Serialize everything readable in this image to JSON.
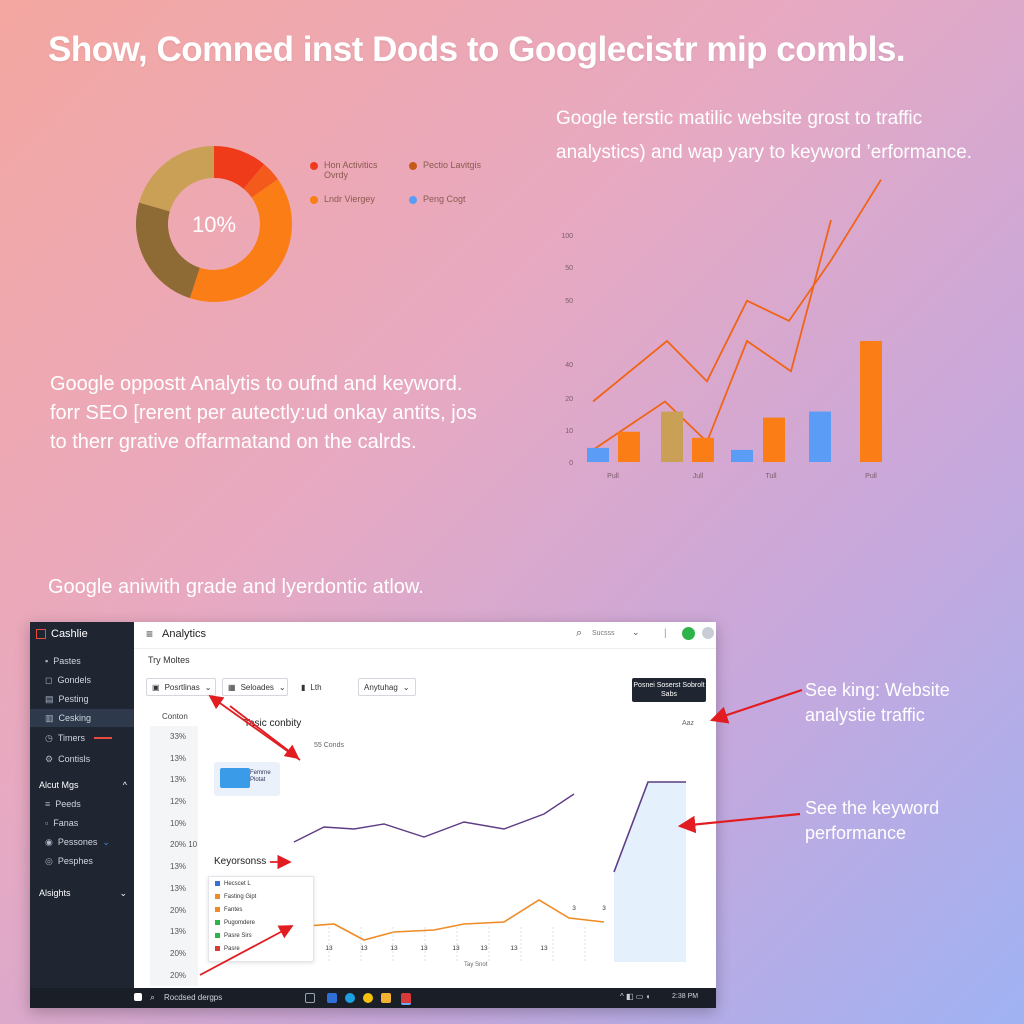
{
  "headline": "Show, Comned inst Dods to Googlecistr mip combls.",
  "right_subtitle": "Google terstic matilic website grost to traffic analystics) and wap yary to keyword ’erformance.",
  "left_paragraph": "Google oppostt Analytis to oufnd and keyword. forr SEO [rerent per autectly:ud onkay antits, jos to therr grative offarmatand on the calrds.",
  "screenshot_caption": "Google aniwith grade and lyerdontic atlow.",
  "callouts": {
    "callout_1": "See king: Website analystie traffic",
    "callout_2": "See the keyword performance"
  },
  "donut": {
    "center_label": "10%",
    "legend": [
      "Hon Activitics Ovrdy",
      "Pectio Lavitgis",
      "Lndr Viergey",
      "Peng Cogt"
    ]
  },
  "colors": {
    "red": "#f03b1a",
    "orange": "#fb7d15",
    "tan": "#c9a056",
    "olive": "#8e6a35",
    "blue": "#5b9cf6",
    "line_orange": "#f06418",
    "navy": "#1f2632",
    "annotation_red": "#e11d22",
    "line_purple": "#5d3d86"
  },
  "chart_data": {
    "type": "bar",
    "y_tick_labels": [
      "0",
      "10",
      "20",
      "40",
      "50",
      "50",
      "100"
    ],
    "x_tick_labels": [
      "Pull",
      "Jull",
      "Tull",
      "Pull"
    ],
    "lines": [
      {
        "points": [
          30,
          60,
          40,
          80,
          70,
          100,
          140
        ]
      },
      {
        "points": [
          6,
          30,
          10,
          60,
          45,
          120
        ]
      }
    ],
    "bars": [
      {
        "value": 7,
        "color": "blue"
      },
      {
        "value": 15,
        "color": "orange"
      },
      {
        "value": 25,
        "color": "tan"
      },
      {
        "value": 12,
        "color": "orange"
      },
      {
        "value": 6,
        "color": "blue"
      },
      {
        "value": 22,
        "color": "orange"
      },
      {
        "value": 25,
        "color": "blue"
      },
      {
        "value": 60,
        "color": "orange"
      }
    ]
  },
  "app": {
    "brand": "Cashlie",
    "title": "Analytics",
    "search_text": "Sucsss",
    "sidebar_items": [
      "Pastes",
      "Gondels",
      "Pesting",
      "Cesking",
      "Timers",
      "Contisls"
    ],
    "sidebar_section": "Alcut Mgs",
    "sidebar_items_2": [
      "Peeds",
      "Fanas",
      "Pessones",
      "Pesphes"
    ],
    "sidebar_footer": "Alsights",
    "breadcrumb": "Try Moltes",
    "filters": [
      "Posrtlinas",
      "Seloades",
      "Lth",
      "Anytuhag"
    ],
    "primary_button": "Posnei Soserst Sobrolt Sabs",
    "table_header": "Conton",
    "table_values": [
      "33%",
      "13%",
      "13%",
      "12%",
      "10%",
      "20% 10",
      "13%",
      "13%",
      "20%",
      "13%",
      "20%",
      "20%"
    ],
    "section_title": "Tasic conbity",
    "section_sub": "55 Conds",
    "card_label": "Femrne Plotat",
    "keyword_label": "Keyorsonss",
    "tooltip_items": [
      "Hecscet L",
      "Fasting Gipt",
      "Fantes",
      "Pugomdere",
      "Pasre Sirs",
      "Pasre"
    ],
    "chart_corner": "Aaz",
    "line_point_labels": [
      "13",
      "13",
      "13",
      "13",
      "13",
      "13",
      "13",
      "13",
      "3",
      "3"
    ],
    "bottom_axis": "Tay Snot",
    "taskbar_search": "Rocdsed dergps",
    "taskbar_time": "2:38 PM"
  }
}
